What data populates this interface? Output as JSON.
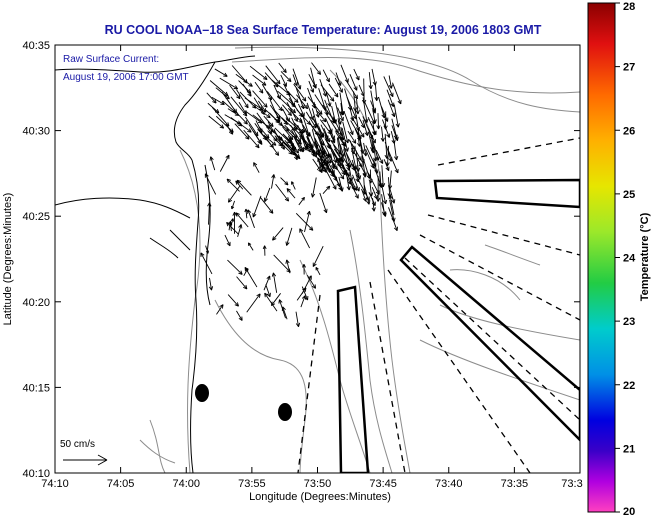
{
  "title": "RU COOL  NOAA–18  Sea Surface Temperature:  August 19, 2006 1803 GMT",
  "legend": {
    "line1": "Raw Surface Current:",
    "line2": "August 19, 2006 17:00 GMT"
  },
  "scale_label": "50 cm/s",
  "x_axis": {
    "label": "Longitude (Degrees:Minutes)",
    "ticks": [
      "74:10",
      "74:05",
      "74:00",
      "73:55",
      "73:50",
      "73:45",
      "73:40",
      "73:35",
      "73:3"
    ]
  },
  "y_axis": {
    "label": "Latitude (Degrees:Minutes)",
    "ticks": [
      "40:35",
      "40:30",
      "40:25",
      "40:20",
      "40:15",
      "40:10"
    ]
  },
  "colorbar": {
    "label": "Temperature (°C)",
    "ticks": [
      "28",
      "27",
      "26",
      "25",
      "24",
      "23",
      "22",
      "21",
      "20"
    ],
    "range": [
      20,
      28
    ]
  },
  "colors": {
    "title": "#1a1aa6",
    "land_outline": "#000000",
    "contours": "#888888",
    "vectors": "#000000"
  }
}
